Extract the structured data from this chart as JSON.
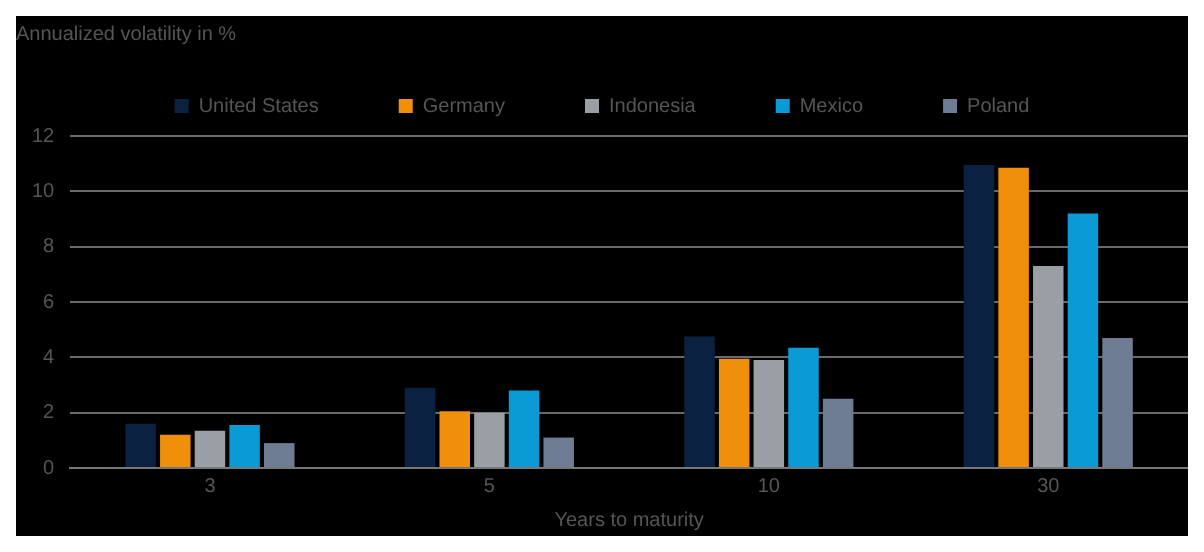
{
  "chart_data": {
    "type": "bar",
    "ylabel": "Annualized volatility in %",
    "xlabel": "Years to maturity",
    "categories": [
      "3",
      "5",
      "10",
      "30"
    ],
    "series": [
      {
        "name": "United States",
        "color": "#0a2142",
        "values": [
          1.6,
          2.9,
          4.75,
          10.95
        ]
      },
      {
        "name": "Germany",
        "color": "#f0900a",
        "values": [
          1.2,
          2.05,
          3.95,
          10.85
        ]
      },
      {
        "name": "Indonesia",
        "color": "#9a9fa5",
        "values": [
          1.35,
          2.0,
          3.9,
          7.3
        ]
      },
      {
        "name": "Mexico",
        "color": "#0a9ad6",
        "values": [
          1.55,
          2.8,
          4.35,
          9.2
        ]
      },
      {
        "name": "Poland",
        "color": "#6f7d94",
        "values": [
          0.9,
          1.1,
          2.5,
          4.7
        ]
      }
    ],
    "ylim": [
      0,
      12
    ],
    "yticks": [
      0,
      2,
      4,
      6,
      8,
      10,
      12
    ],
    "grid": "y",
    "legend": "top"
  }
}
